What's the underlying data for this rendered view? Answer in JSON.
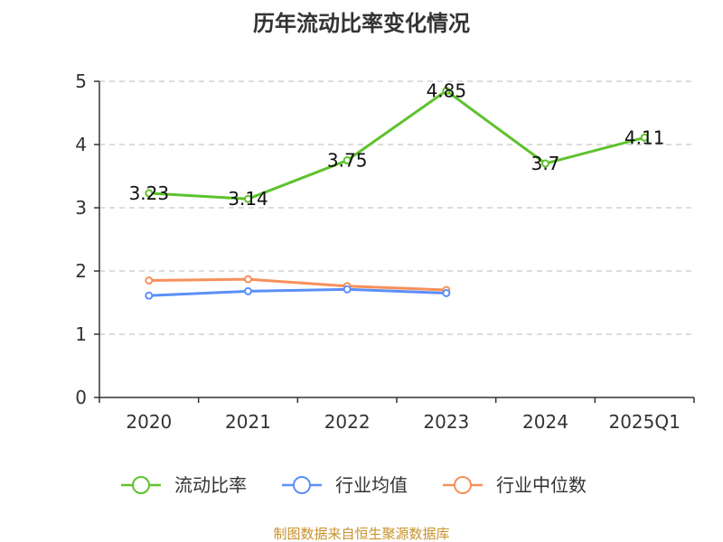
{
  "chart_data": {
    "type": "line",
    "title": "历年流动比率变化情况",
    "categories": [
      "2020",
      "2021",
      "2022",
      "2023",
      "2024",
      "2025Q1"
    ],
    "yticks": [
      "0",
      "1",
      "2",
      "3",
      "4",
      "5"
    ],
    "ylim": [
      0,
      5
    ],
    "grid": true,
    "legend_position": "bottom",
    "series": [
      {
        "name": "流动比率",
        "color": "#5ec22d",
        "values": [
          3.23,
          3.14,
          3.75,
          4.85,
          3.7,
          4.11
        ],
        "labels": [
          "3.23",
          "3.14",
          "3.75",
          "4.85",
          "3.7",
          "4.11"
        ]
      },
      {
        "name": "行业均值",
        "color": "#5b8ff9",
        "values": [
          1.61,
          1.68,
          1.71,
          1.65,
          null,
          null
        ]
      },
      {
        "name": "行业中位数",
        "color": "#f6905a",
        "values": [
          1.85,
          1.87,
          1.76,
          1.7,
          null,
          null
        ]
      }
    ]
  },
  "source": "制图数据来自恒生聚源数据库"
}
